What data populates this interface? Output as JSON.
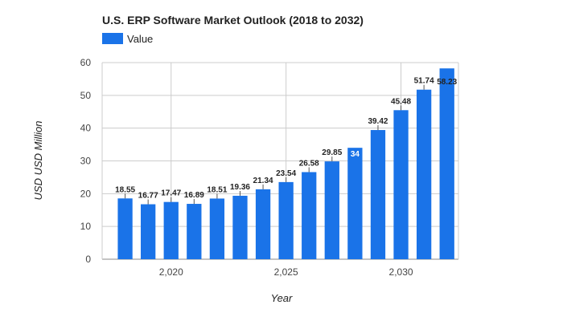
{
  "chart_data": {
    "type": "bar",
    "title": "U.S. ERP Software Market Outlook (2018 to 2032)",
    "xlabel": "Year",
    "ylabel": "USD USD Million",
    "legend": {
      "position": "top-left",
      "entries": [
        "Value"
      ]
    },
    "series": [
      {
        "name": "Value",
        "color": "#1a73e8",
        "x": [
          2018,
          2019,
          2020,
          2021,
          2022,
          2023,
          2024,
          2025,
          2026,
          2027,
          2028,
          2029,
          2030,
          2031,
          2032
        ],
        "values": [
          18.55,
          16.77,
          17.47,
          16.89,
          18.51,
          19.36,
          21.34,
          23.54,
          26.58,
          29.85,
          34,
          39.42,
          45.48,
          51.74,
          58.23
        ],
        "labels": [
          "18.55",
          "16.77",
          "17.47",
          "16.89",
          "18.51",
          "19.36",
          "21.34",
          "23.54",
          "26.58",
          "29.85",
          "34",
          "39.42",
          "45.48",
          "51.74",
          "58.23"
        ]
      }
    ],
    "ylim": [
      0,
      60
    ],
    "xlim": [
      2017,
      2032.5
    ],
    "yticks": [
      0,
      10,
      20,
      30,
      40,
      50,
      60
    ],
    "ytick_labels": [
      "0",
      "10",
      "20",
      "30",
      "40",
      "50",
      "60"
    ],
    "xticks": [
      2020,
      2025,
      2030
    ],
    "xtick_labels": [
      "2,020",
      "2,025",
      "2,030"
    ],
    "grid": true,
    "colors": {
      "bar": "#1a73e8",
      "grid": "#cccccc",
      "text": "#222222"
    }
  }
}
